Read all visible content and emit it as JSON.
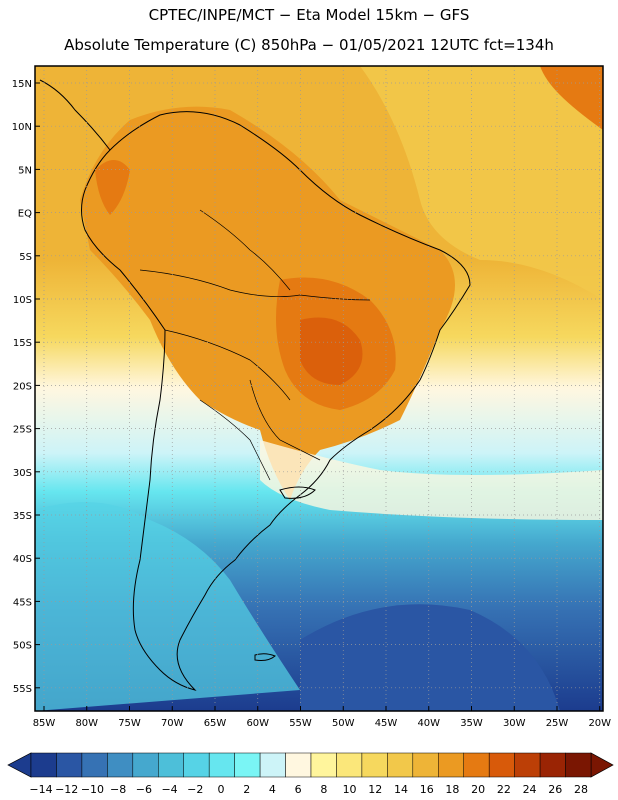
{
  "header": {
    "title_line1": "CPTEC/INPE/MCT −  Eta Model 15km − GFS",
    "title_line2": "Absolute Temperature (C) 850hPa − 01/05/2021 12UTC fct=134h"
  },
  "lat_labels": [
    "15N",
    "10N",
    "5N",
    "EQ",
    "5S",
    "10S",
    "15S",
    "20S",
    "25S",
    "30S",
    "35S",
    "40S",
    "45S",
    "50S",
    "55S"
  ],
  "lon_labels": [
    "85W",
    "80W",
    "75W",
    "70W",
    "65W",
    "60W",
    "55W",
    "50W",
    "45W",
    "40W",
    "35W",
    "30W",
    "25W",
    "20W"
  ],
  "legend": {
    "labels": [
      "-14",
      "-12",
      "-10",
      "-8",
      "-6",
      "-4",
      "-2",
      "0",
      "2",
      "4",
      "6",
      "8",
      "10",
      "12",
      "14",
      "16",
      "18",
      "20",
      "22",
      "24",
      "26",
      "28"
    ],
    "colors": [
      "#1c3c8e",
      "#2a56a4",
      "#3672b4",
      "#3f8ec2",
      "#45a8ce",
      "#4dbfd9",
      "#56d3e6",
      "#66e6ef",
      "#7af5f5",
      "#cdf4f8",
      "#fff7e0",
      "#fff59c",
      "#fbe77a",
      "#f6d85e",
      "#f2c84a",
      "#eeb437",
      "#eb9a22",
      "#e57a12",
      "#d85a0a",
      "#bc3f06",
      "#9a2404",
      "#7a1602"
    ]
  },
  "colors": {
    "hot": "#e9a020",
    "warm": "#eeb437",
    "mild": "#f6d85e",
    "cool_light": "#fff7e0",
    "cyan": "#66e6ef",
    "blue_mid": "#3f8ec2",
    "blue_deep": "#1c3c8e"
  }
}
